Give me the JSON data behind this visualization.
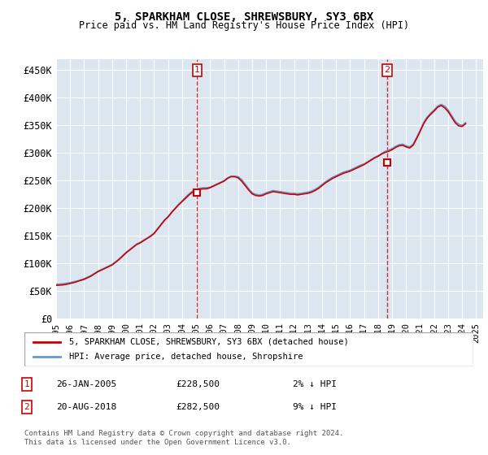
{
  "title": "5, SPARKHAM CLOSE, SHREWSBURY, SY3 6BX",
  "subtitle": "Price paid vs. HM Land Registry's House Price Index (HPI)",
  "ylabel_ticks": [
    "£0",
    "£50K",
    "£100K",
    "£150K",
    "£200K",
    "£250K",
    "£300K",
    "£350K",
    "£400K",
    "£450K"
  ],
  "ytick_values": [
    0,
    50000,
    100000,
    150000,
    200000,
    250000,
    300000,
    350000,
    400000,
    450000
  ],
  "ylim": [
    0,
    470000
  ],
  "xlim_start": 1995.0,
  "xlim_end": 2025.5,
  "xtick_labels": [
    "1995",
    "1996",
    "1997",
    "1998",
    "1999",
    "2000",
    "2001",
    "2002",
    "2003",
    "2004",
    "2005",
    "2006",
    "2007",
    "2008",
    "2009",
    "2010",
    "2011",
    "2012",
    "2013",
    "2014",
    "2015",
    "2016",
    "2017",
    "2018",
    "2019",
    "2020",
    "2021",
    "2022",
    "2023",
    "2024",
    "2025"
  ],
  "background_color": "#dce6f1",
  "plot_bg_color": "#dce6f1",
  "grid_color": "#ffffff",
  "sale1_x": 2005.07,
  "sale1_y": 228500,
  "sale1_label": "1",
  "sale2_x": 2018.63,
  "sale2_y": 282500,
  "sale2_label": "2",
  "legend_line1": "5, SPARKHAM CLOSE, SHREWSBURY, SY3 6BX (detached house)",
  "legend_line2": "HPI: Average price, detached house, Shropshire",
  "table_row1": [
    "1",
    "26-JAN-2005",
    "£228,500",
    "2% ↓ HPI"
  ],
  "table_row2": [
    "2",
    "20-AUG-2018",
    "£282,500",
    "9% ↓ HPI"
  ],
  "footer": "Contains HM Land Registry data © Crown copyright and database right 2024.\nThis data is licensed under the Open Government Licence v3.0.",
  "line_color_property": "#cc0000",
  "line_color_hpi": "#6699cc",
  "dashed_vline_color": "#cc0000",
  "hpi_data_x": [
    1995.0,
    1995.25,
    1995.5,
    1995.75,
    1996.0,
    1996.25,
    1996.5,
    1996.75,
    1997.0,
    1997.25,
    1997.5,
    1997.75,
    1998.0,
    1998.25,
    1998.5,
    1998.75,
    1999.0,
    1999.25,
    1999.5,
    1999.75,
    2000.0,
    2000.25,
    2000.5,
    2000.75,
    2001.0,
    2001.25,
    2001.5,
    2001.75,
    2002.0,
    2002.25,
    2002.5,
    2002.75,
    2003.0,
    2003.25,
    2003.5,
    2003.75,
    2004.0,
    2004.25,
    2004.5,
    2004.75,
    2005.0,
    2005.25,
    2005.5,
    2005.75,
    2006.0,
    2006.25,
    2006.5,
    2006.75,
    2007.0,
    2007.25,
    2007.5,
    2007.75,
    2008.0,
    2008.25,
    2008.5,
    2008.75,
    2009.0,
    2009.25,
    2009.5,
    2009.75,
    2010.0,
    2010.25,
    2010.5,
    2010.75,
    2011.0,
    2011.25,
    2011.5,
    2011.75,
    2012.0,
    2012.25,
    2012.5,
    2012.75,
    2013.0,
    2013.25,
    2013.5,
    2013.75,
    2014.0,
    2014.25,
    2014.5,
    2014.75,
    2015.0,
    2015.25,
    2015.5,
    2015.75,
    2016.0,
    2016.25,
    2016.5,
    2016.75,
    2017.0,
    2017.25,
    2017.5,
    2017.75,
    2018.0,
    2018.25,
    2018.5,
    2018.75,
    2019.0,
    2019.25,
    2019.5,
    2019.75,
    2020.0,
    2020.25,
    2020.5,
    2020.75,
    2021.0,
    2021.25,
    2021.5,
    2021.75,
    2022.0,
    2022.25,
    2022.5,
    2022.75,
    2023.0,
    2023.25,
    2023.5,
    2023.75,
    2024.0,
    2024.25
  ],
  "hpi_data_y": [
    62000,
    62500,
    63000,
    64000,
    65000,
    66500,
    68000,
    70000,
    72000,
    75000,
    78000,
    82000,
    86000,
    89000,
    92000,
    95000,
    98000,
    103000,
    108000,
    114000,
    120000,
    125000,
    130000,
    135000,
    138000,
    142000,
    146000,
    150000,
    155000,
    163000,
    171000,
    179000,
    185000,
    193000,
    200000,
    207000,
    213000,
    220000,
    226000,
    231000,
    234000,
    236000,
    237000,
    237000,
    238000,
    241000,
    244000,
    247000,
    250000,
    255000,
    258000,
    258000,
    257000,
    252000,
    244000,
    235000,
    228000,
    225000,
    224000,
    225000,
    228000,
    230000,
    232000,
    231000,
    230000,
    229000,
    228000,
    227000,
    227000,
    226000,
    227000,
    228000,
    229000,
    231000,
    234000,
    238000,
    243000,
    248000,
    252000,
    256000,
    259000,
    262000,
    265000,
    267000,
    269000,
    272000,
    275000,
    278000,
    280000,
    284000,
    288000,
    292000,
    295000,
    299000,
    303000,
    305000,
    308000,
    312000,
    315000,
    316000,
    313000,
    311000,
    316000,
    328000,
    341000,
    355000,
    365000,
    372000,
    378000,
    385000,
    388000,
    385000,
    378000,
    368000,
    358000,
    352000,
    350000,
    355000
  ],
  "property_data_x": [
    1995.0,
    1995.25,
    1995.5,
    1995.75,
    1996.0,
    1996.25,
    1996.5,
    1996.75,
    1997.0,
    1997.25,
    1997.5,
    1997.75,
    1998.0,
    1998.25,
    1998.5,
    1998.75,
    1999.0,
    1999.25,
    1999.5,
    1999.75,
    2000.0,
    2000.25,
    2000.5,
    2000.75,
    2001.0,
    2001.25,
    2001.5,
    2001.75,
    2002.0,
    2002.25,
    2002.5,
    2002.75,
    2003.0,
    2003.25,
    2003.5,
    2003.75,
    2004.0,
    2004.25,
    2004.5,
    2004.75,
    2005.0,
    2005.25,
    2005.5,
    2005.75,
    2006.0,
    2006.25,
    2006.5,
    2006.75,
    2007.0,
    2007.25,
    2007.5,
    2007.75,
    2008.0,
    2008.25,
    2008.5,
    2008.75,
    2009.0,
    2009.25,
    2009.5,
    2009.75,
    2010.0,
    2010.25,
    2010.5,
    2010.75,
    2011.0,
    2011.25,
    2011.5,
    2011.75,
    2012.0,
    2012.25,
    2012.5,
    2012.75,
    2013.0,
    2013.25,
    2013.5,
    2013.75,
    2014.0,
    2014.25,
    2014.5,
    2014.75,
    2015.0,
    2015.25,
    2015.5,
    2015.75,
    2016.0,
    2016.25,
    2016.5,
    2016.75,
    2017.0,
    2017.25,
    2017.5,
    2017.75,
    2018.0,
    2018.25,
    2018.5,
    2018.75,
    2019.0,
    2019.25,
    2019.5,
    2019.75,
    2020.0,
    2020.25,
    2020.5,
    2020.75,
    2021.0,
    2021.25,
    2021.5,
    2021.75,
    2022.0,
    2022.25,
    2022.5,
    2022.75,
    2023.0,
    2023.25,
    2023.5,
    2023.75,
    2024.0,
    2024.25
  ],
  "property_data_y": [
    60000,
    60500,
    61000,
    62000,
    63500,
    65000,
    67000,
    69000,
    71000,
    74000,
    77000,
    81000,
    85000,
    88000,
    91000,
    94000,
    97000,
    102000,
    107000,
    113000,
    119000,
    124000,
    129000,
    134000,
    137000,
    141000,
    145000,
    149000,
    154000,
    162000,
    170000,
    178000,
    184000,
    192000,
    199000,
    206000,
    212000,
    218000,
    224000,
    229000,
    233000,
    234000,
    235000,
    235000,
    237000,
    240000,
    243000,
    246000,
    249000,
    254000,
    257000,
    257000,
    255000,
    249000,
    241000,
    233000,
    226000,
    223000,
    222000,
    223000,
    226000,
    228000,
    230000,
    229000,
    228000,
    227000,
    226000,
    225000,
    225000,
    224000,
    225000,
    226000,
    227000,
    229000,
    232000,
    236000,
    241000,
    246000,
    250000,
    254000,
    257000,
    260000,
    263000,
    265000,
    267000,
    270000,
    273000,
    276000,
    279000,
    283000,
    287000,
    291000,
    294000,
    298000,
    301000,
    303000,
    306000,
    310000,
    313000,
    314000,
    311000,
    309000,
    314000,
    326000,
    339000,
    353000,
    363000,
    370000,
    376000,
    383000,
    386000,
    382000,
    375000,
    365000,
    355000,
    349000,
    348000,
    353000
  ]
}
